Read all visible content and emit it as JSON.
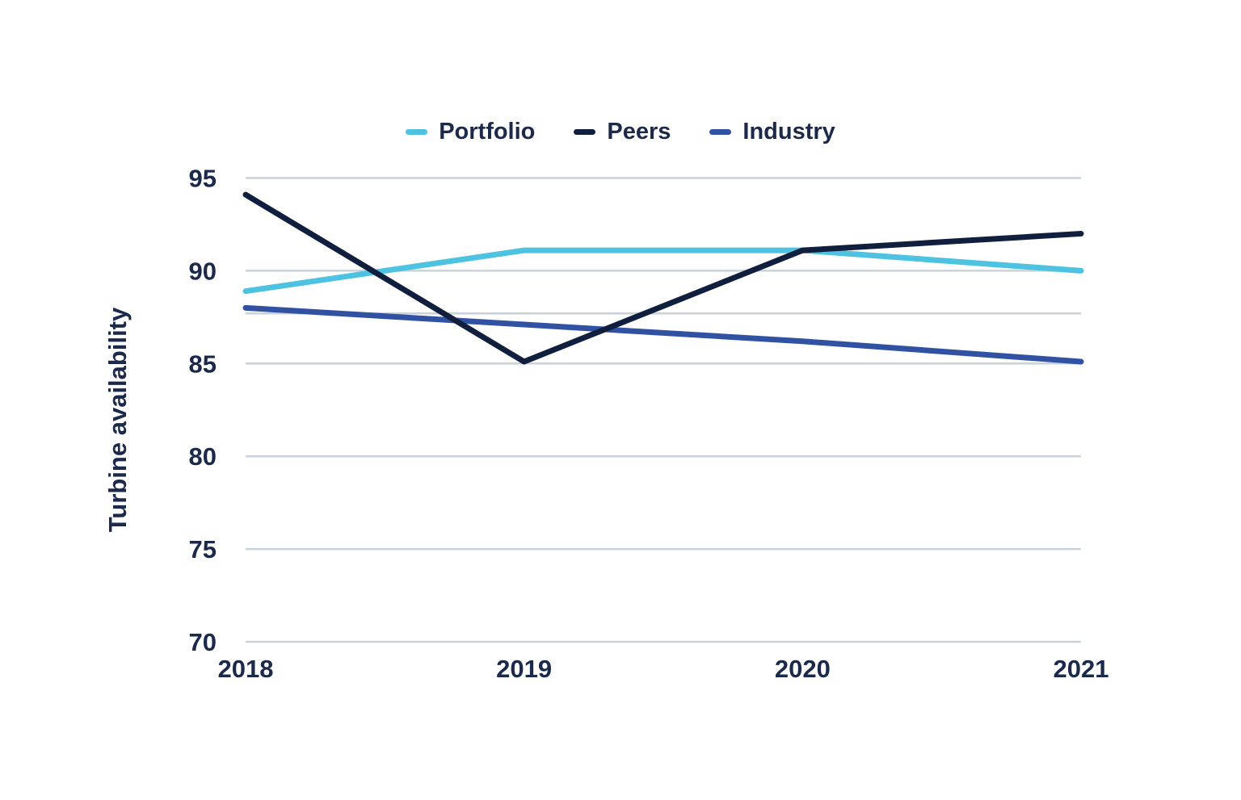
{
  "chart_data": {
    "type": "line",
    "ylabel": "Turbine availability",
    "categories": [
      "2018",
      "2019",
      "2020",
      "2021"
    ],
    "series": [
      {
        "name": "Portfolio",
        "color": "#4EC3E1",
        "values": [
          88.9,
          91.1,
          91.1,
          90.0
        ]
      },
      {
        "name": "Peers",
        "color": "#111F3E",
        "values": [
          94.1,
          85.1,
          91.1,
          92.0
        ]
      },
      {
        "name": "Industry",
        "color": "#3152A3",
        "values": [
          88.0,
          87.1,
          86.2,
          85.1
        ]
      }
    ],
    "ylim": [
      70,
      95
    ],
    "yticks": [
      70,
      75,
      80,
      85,
      90,
      95
    ],
    "grid": "horizontal-only",
    "extra_gridline_y": 87.7,
    "gridline_color": "#C9D2DA",
    "text_color": "#1B294A",
    "legend_position": "top-center",
    "background_color": "#FFFFFF"
  }
}
